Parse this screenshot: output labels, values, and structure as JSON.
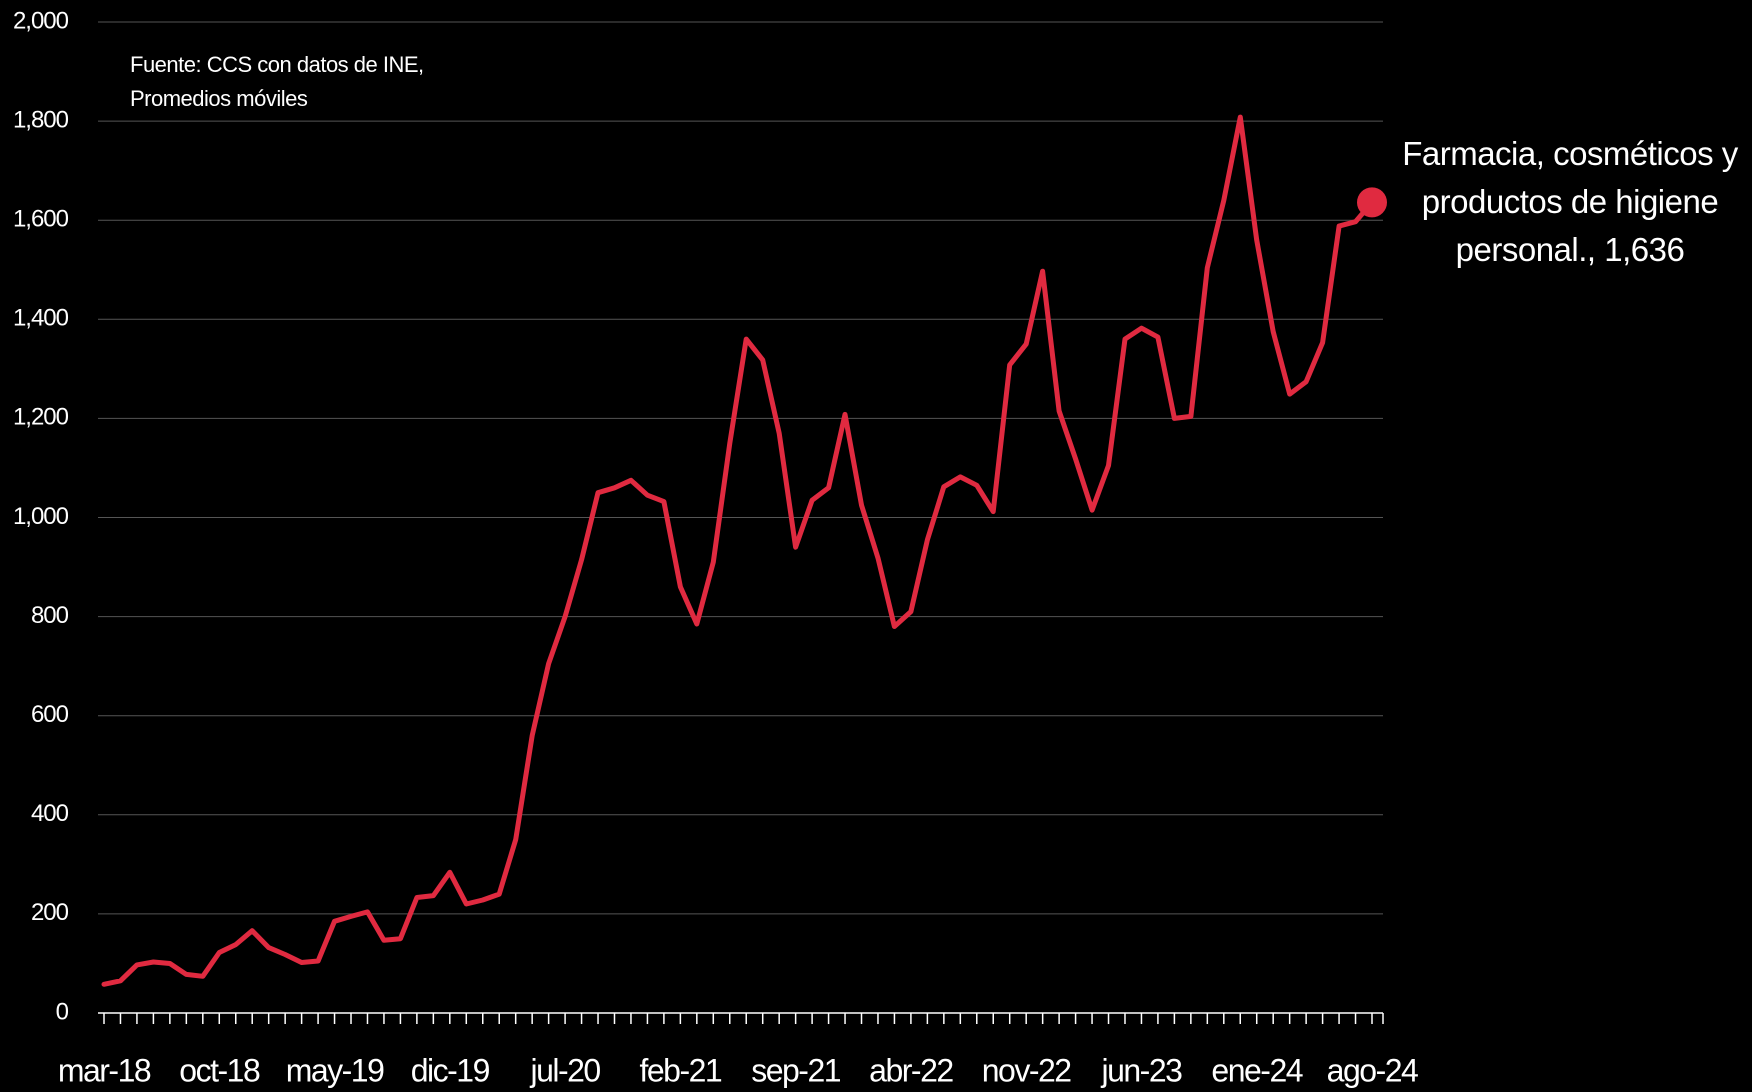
{
  "chart_data": {
    "type": "line",
    "subtitle": "Fuente: CCS con datos de INE,\nPromedios móviles",
    "annotation": "Farmacia, cosméticos y productos de higiene personal., 1,636",
    "categories": [
      "mar-18",
      null,
      null,
      null,
      null,
      null,
      null,
      "oct-18",
      null,
      null,
      null,
      null,
      null,
      null,
      "may-19",
      null,
      null,
      null,
      null,
      null,
      null,
      "dic-19",
      null,
      null,
      null,
      null,
      null,
      null,
      "jul-20",
      null,
      null,
      null,
      null,
      null,
      null,
      "feb-21",
      null,
      null,
      null,
      null,
      null,
      null,
      "sep-21",
      null,
      null,
      null,
      null,
      null,
      null,
      "abr-22",
      null,
      null,
      null,
      null,
      null,
      null,
      "nov-22",
      null,
      null,
      null,
      null,
      null,
      null,
      "jun-23",
      null,
      null,
      null,
      null,
      null,
      null,
      "ene-24",
      null,
      null,
      null,
      null,
      null,
      null,
      "ago-24"
    ],
    "values": [
      58,
      65,
      97,
      103,
      100,
      78,
      74,
      122,
      138,
      166,
      132,
      118,
      102,
      105,
      185,
      195,
      204,
      147,
      150,
      233,
      237,
      284,
      220,
      228,
      240,
      350,
      560,
      705,
      800,
      915,
      1050,
      1060,
      1075,
      1045,
      1032,
      860,
      785,
      910,
      1150,
      1360,
      1318,
      1170,
      940,
      1035,
      1060,
      1208,
      1025,
      918,
      780,
      810,
      955,
      1062,
      1082,
      1065,
      1012,
      1308,
      1350,
      1497,
      1215,
      1118,
      1015,
      1105,
      1360,
      1382,
      1364,
      1200,
      1204,
      1504,
      1640,
      1808,
      1560,
      1375,
      1249,
      1274,
      1353,
      1588,
      1597,
      1636
    ],
    "color": "#e02a40",
    "ylim": [
      0,
      2000
    ],
    "yticks": [
      0,
      {
        "value": 200,
        "label": "200"
      },
      {
        "value": 400,
        "label": "400"
      },
      {
        "value": 600,
        "label": "600"
      },
      {
        "value": 800,
        "label": "800"
      },
      {
        "value": 1000,
        "label": "1,000"
      },
      {
        "value": 1200,
        "label": "1,200"
      },
      {
        "value": 1400,
        "label": "1,400"
      },
      {
        "value": 1600,
        "label": "1,600"
      },
      {
        "value": 1800,
        "label": "1,800"
      },
      {
        "value": 2000,
        "label": "2,000"
      }
    ],
    "grid": true
  }
}
